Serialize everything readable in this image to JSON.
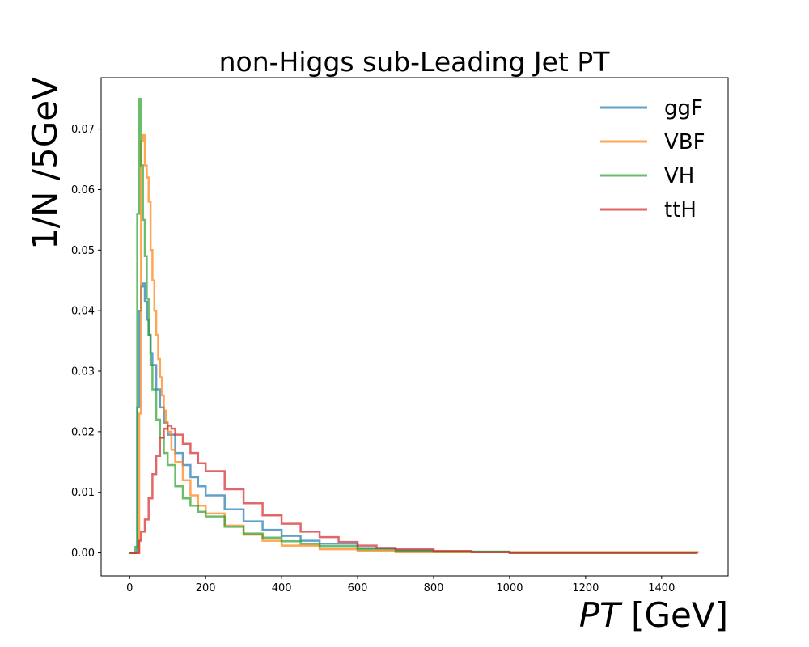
{
  "chart_data": {
    "type": "line",
    "title": "non-Higgs sub-Leading Jet PT",
    "xlabel_var": "PT",
    "xlabel_unit": " [GeV]",
    "ylabel": "1/N /5GeV",
    "xlim": [
      -75,
      1575
    ],
    "ylim": [
      -0.0038,
      0.0785
    ],
    "xticks": [
      0,
      200,
      400,
      600,
      800,
      1000,
      1200,
      1400
    ],
    "yticks": [
      0.0,
      0.01,
      0.02,
      0.03,
      0.04,
      0.05,
      0.06,
      0.07
    ],
    "ytick_labels": [
      "0.00",
      "0.01",
      "0.02",
      "0.03",
      "0.04",
      "0.05",
      "0.06",
      "0.07"
    ],
    "legend_position": "top-right",
    "series": [
      {
        "name": "ggF",
        "color": "#1f77b4",
        "points": [
          [
            0,
            0
          ],
          [
            15,
            0
          ],
          [
            20,
            0.024
          ],
          [
            25,
            0.04
          ],
          [
            30,
            0.044
          ],
          [
            35,
            0.0445
          ],
          [
            40,
            0.0415
          ],
          [
            45,
            0.0385
          ],
          [
            50,
            0.036
          ],
          [
            55,
            0.033
          ],
          [
            60,
            0.031
          ],
          [
            70,
            0.027
          ],
          [
            80,
            0.024
          ],
          [
            90,
            0.0215
          ],
          [
            100,
            0.0195
          ],
          [
            120,
            0.0165
          ],
          [
            140,
            0.0145
          ],
          [
            160,
            0.0125
          ],
          [
            180,
            0.011
          ],
          [
            200,
            0.0095
          ],
          [
            250,
            0.0072
          ],
          [
            300,
            0.0052
          ],
          [
            350,
            0.0038
          ],
          [
            400,
            0.0028
          ],
          [
            450,
            0.002
          ],
          [
            500,
            0.0015
          ],
          [
            600,
            0.0008
          ],
          [
            700,
            0.0004
          ],
          [
            800,
            0.0002
          ],
          [
            1000,
            0.0001
          ],
          [
            1495,
            0
          ]
        ]
      },
      {
        "name": "VBF",
        "color": "#ff7f0e",
        "points": [
          [
            0,
            0
          ],
          [
            15,
            0
          ],
          [
            20,
            0.0
          ],
          [
            25,
            0.023
          ],
          [
            30,
            0.068
          ],
          [
            35,
            0.069
          ],
          [
            40,
            0.064
          ],
          [
            45,
            0.062
          ],
          [
            50,
            0.058
          ],
          [
            55,
            0.05
          ],
          [
            60,
            0.045
          ],
          [
            65,
            0.04
          ],
          [
            70,
            0.036
          ],
          [
            75,
            0.032
          ],
          [
            80,
            0.029
          ],
          [
            85,
            0.026
          ],
          [
            90,
            0.0235
          ],
          [
            95,
            0.0215
          ],
          [
            100,
            0.02
          ],
          [
            110,
            0.017
          ],
          [
            120,
            0.015
          ],
          [
            140,
            0.012
          ],
          [
            160,
            0.0095
          ],
          [
            180,
            0.0078
          ],
          [
            200,
            0.0065
          ],
          [
            250,
            0.0045
          ],
          [
            300,
            0.003
          ],
          [
            350,
            0.002
          ],
          [
            400,
            0.0012
          ],
          [
            500,
            0.0006
          ],
          [
            600,
            0.0003
          ],
          [
            700,
            0.0001
          ],
          [
            1495,
            0
          ]
        ]
      },
      {
        "name": "VH",
        "color": "#2ca02c",
        "points": [
          [
            0,
            0
          ],
          [
            10,
            0
          ],
          [
            15,
            0.001
          ],
          [
            20,
            0.056
          ],
          [
            25,
            0.075
          ],
          [
            30,
            0.064
          ],
          [
            35,
            0.055
          ],
          [
            40,
            0.049
          ],
          [
            45,
            0.042
          ],
          [
            50,
            0.036
          ],
          [
            55,
            0.031
          ],
          [
            60,
            0.027
          ],
          [
            70,
            0.022
          ],
          [
            80,
            0.019
          ],
          [
            90,
            0.0165
          ],
          [
            100,
            0.0145
          ],
          [
            120,
            0.011
          ],
          [
            140,
            0.009
          ],
          [
            160,
            0.0078
          ],
          [
            180,
            0.0068
          ],
          [
            200,
            0.006
          ],
          [
            250,
            0.0043
          ],
          [
            300,
            0.0032
          ],
          [
            350,
            0.0025
          ],
          [
            400,
            0.0019
          ],
          [
            450,
            0.0015
          ],
          [
            500,
            0.0011
          ],
          [
            600,
            0.0006
          ],
          [
            700,
            0.0003
          ],
          [
            800,
            0.0002
          ],
          [
            1000,
            0
          ],
          [
            1495,
            0
          ]
        ]
      },
      {
        "name": "ttH",
        "color": "#d62728",
        "points": [
          [
            0,
            0
          ],
          [
            15,
            0
          ],
          [
            20,
            0.0
          ],
          [
            25,
            0.002
          ],
          [
            30,
            0.0035
          ],
          [
            40,
            0.0055
          ],
          [
            50,
            0.009
          ],
          [
            60,
            0.013
          ],
          [
            70,
            0.016
          ],
          [
            80,
            0.019
          ],
          [
            90,
            0.0205
          ],
          [
            100,
            0.021
          ],
          [
            110,
            0.0205
          ],
          [
            120,
            0.0195
          ],
          [
            140,
            0.018
          ],
          [
            160,
            0.0165
          ],
          [
            180,
            0.0148
          ],
          [
            200,
            0.0135
          ],
          [
            250,
            0.0105
          ],
          [
            300,
            0.0082
          ],
          [
            350,
            0.0062
          ],
          [
            400,
            0.0048
          ],
          [
            450,
            0.0035
          ],
          [
            500,
            0.0026
          ],
          [
            550,
            0.0018
          ],
          [
            600,
            0.0012
          ],
          [
            650,
            0.0008
          ],
          [
            700,
            0.0006
          ],
          [
            800,
            0.0003
          ],
          [
            900,
            0.0001
          ],
          [
            1000,
            0
          ],
          [
            1495,
            0
          ]
        ]
      }
    ]
  }
}
